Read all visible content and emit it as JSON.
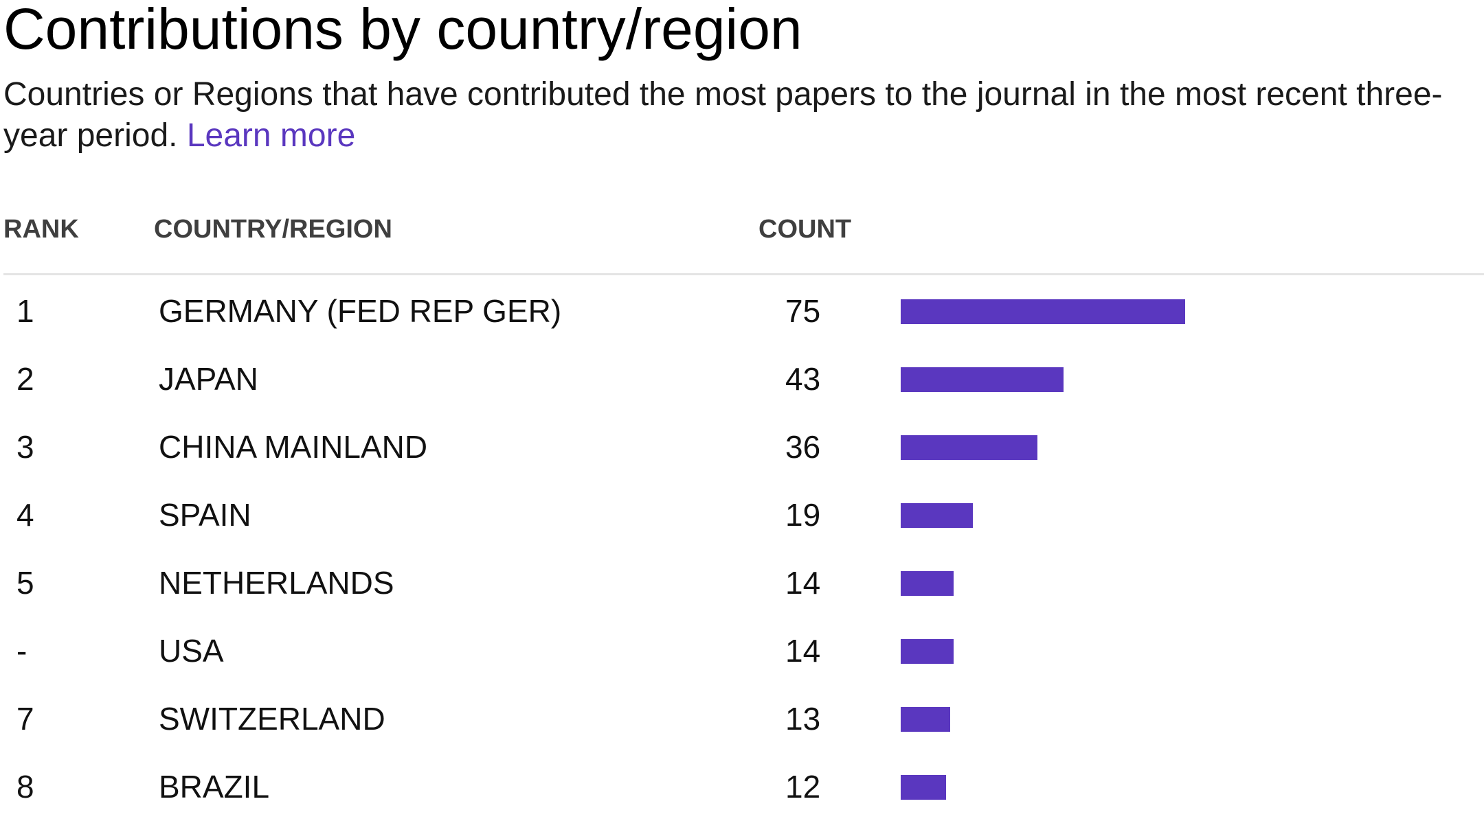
{
  "header": {
    "title": "Contributions by country/region",
    "subtitle": "Countries or Regions that have contributed the most papers to the journal in the most recent three-year period.",
    "learn_more_label": "Learn more"
  },
  "table": {
    "columns": [
      "RANK",
      "COUNTRY/REGION",
      "COUNT"
    ]
  },
  "colors": {
    "bar": "#5a37bf",
    "link": "#5a37bf"
  },
  "chart_data": {
    "type": "bar",
    "orientation": "horizontal",
    "title": "Contributions by country/region",
    "categories": [
      "GERMANY (FED REP GER)",
      "JAPAN",
      "CHINA MAINLAND",
      "SPAIN",
      "NETHERLANDS",
      "USA",
      "SWITZERLAND",
      "BRAZIL"
    ],
    "ranks": [
      "1",
      "2",
      "3",
      "4",
      "5",
      "-",
      "7",
      "8"
    ],
    "values": [
      75,
      43,
      36,
      19,
      14,
      14,
      13,
      12
    ],
    "xlim": [
      0,
      75
    ],
    "grid": false,
    "legend": "none"
  }
}
